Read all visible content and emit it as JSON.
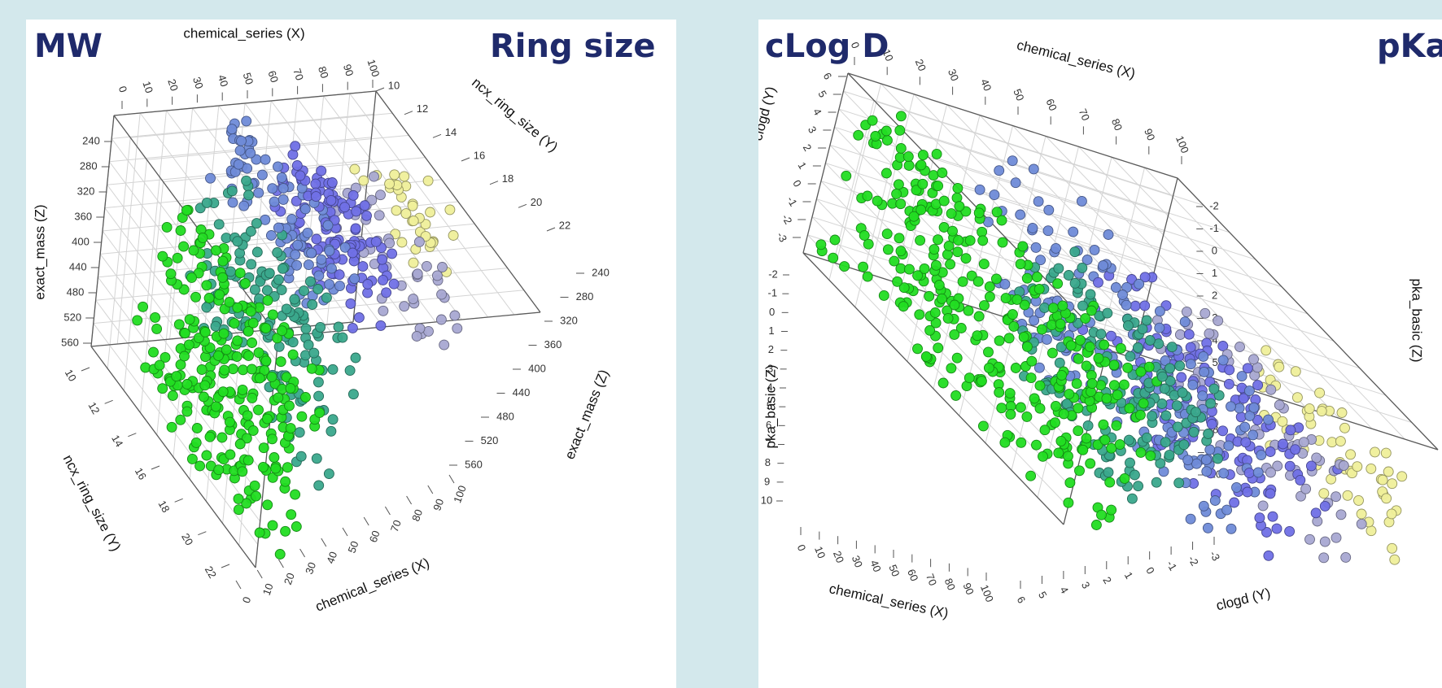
{
  "panels": [
    {
      "title_left": "MW",
      "title_right": "Ring size"
    },
    {
      "title_left": "cLog D",
      "title_right": "pKa"
    }
  ],
  "colors": {
    "background": "#d3e8ec",
    "title": "#1f2a6b",
    "series_green": "#22dd22",
    "series_teal": "#3aa88c",
    "series_blue": "#6f8bd8",
    "series_violet": "#7070e6",
    "series_lavender": "#a8a8d2",
    "series_yellow": "#efef9a"
  },
  "chart_data": [
    {
      "type": "scatter",
      "projection": "3d",
      "axes": {
        "x": {
          "label": "chemical_series (X)",
          "ticks": [
            "0",
            "10",
            "20",
            "30",
            "40",
            "50",
            "60",
            "70",
            "80",
            "90",
            "100"
          ]
        },
        "y": {
          "label": "ncx_ring_size (Y)",
          "ticks": [
            "10",
            "12",
            "14",
            "16",
            "18",
            "20",
            "22"
          ]
        },
        "z": {
          "label": "exact_mass (Z)",
          "ticks": [
            "240",
            "280",
            "320",
            "360",
            "400",
            "440",
            "480",
            "520",
            "560"
          ]
        }
      },
      "xlim": [
        0,
        100
      ],
      "ylim": [
        10,
        22
      ],
      "zlim": [
        240,
        560
      ],
      "grid": true,
      "groups": [
        {
          "color": "#22dd22",
          "x_range": [
            2,
            20
          ],
          "y_range": [
            12,
            22
          ],
          "z_range": [
            300,
            560
          ]
        },
        {
          "color": "#3aa88c",
          "x_range": [
            20,
            38
          ],
          "y_range": [
            11,
            19
          ],
          "z_range": [
            300,
            540
          ]
        },
        {
          "color": "#6f8bd8",
          "x_range": [
            35,
            55
          ],
          "y_range": [
            10,
            14
          ],
          "z_range": [
            240,
            440
          ]
        },
        {
          "color": "#7070e6",
          "x_range": [
            50,
            68
          ],
          "y_range": [
            10,
            14
          ],
          "z_range": [
            300,
            460
          ]
        },
        {
          "color": "#a8a8d2",
          "x_range": [
            65,
            82
          ],
          "y_range": [
            10,
            14
          ],
          "z_range": [
            320,
            520
          ]
        },
        {
          "color": "#efef9a",
          "x_range": [
            80,
            96
          ],
          "y_range": [
            10,
            13
          ],
          "z_range": [
            300,
            440
          ]
        }
      ]
    },
    {
      "type": "scatter",
      "projection": "3d",
      "axes": {
        "x": {
          "label": "chemical_series (X)",
          "ticks": [
            "0",
            "10",
            "20",
            "30",
            "40",
            "50",
            "60",
            "70",
            "80",
            "90",
            "100"
          ]
        },
        "y": {
          "label": "clogd (Y)",
          "ticks": [
            "6",
            "5",
            "4",
            "3",
            "2",
            "1",
            "0",
            "-1",
            "-2",
            "-3"
          ]
        },
        "z": {
          "label": "pka_basic (Z)",
          "ticks": [
            "-2",
            "-1",
            "0",
            "1",
            "2",
            "3",
            "4",
            "5",
            "6",
            "7",
            "8",
            "9",
            "10"
          ]
        }
      },
      "xlim": [
        0,
        100
      ],
      "ylim": [
        -3,
        6
      ],
      "zlim": [
        -2,
        10
      ],
      "grid": true,
      "groups": [
        {
          "color": "#22dd22",
          "x_range": [
            2,
            22
          ],
          "y_range": [
            -2,
            6
          ],
          "z_range": [
            -2,
            10
          ]
        },
        {
          "color": "#3aa88c",
          "x_range": [
            22,
            40
          ],
          "y_range": [
            -2,
            5
          ],
          "z_range": [
            3,
            10
          ]
        },
        {
          "color": "#6f8bd8",
          "x_range": [
            40,
            62
          ],
          "y_range": [
            -2,
            5
          ],
          "z_range": [
            -2,
            10
          ]
        },
        {
          "color": "#7070e6",
          "x_range": [
            55,
            75
          ],
          "y_range": [
            -1,
            5
          ],
          "z_range": [
            1,
            10
          ]
        },
        {
          "color": "#a8a8d2",
          "x_range": [
            70,
            85
          ],
          "y_range": [
            -1,
            4
          ],
          "z_range": [
            2,
            10
          ]
        },
        {
          "color": "#efef9a",
          "x_range": [
            85,
            100
          ],
          "y_range": [
            -1,
            3
          ],
          "z_range": [
            4,
            10
          ]
        }
      ]
    }
  ]
}
